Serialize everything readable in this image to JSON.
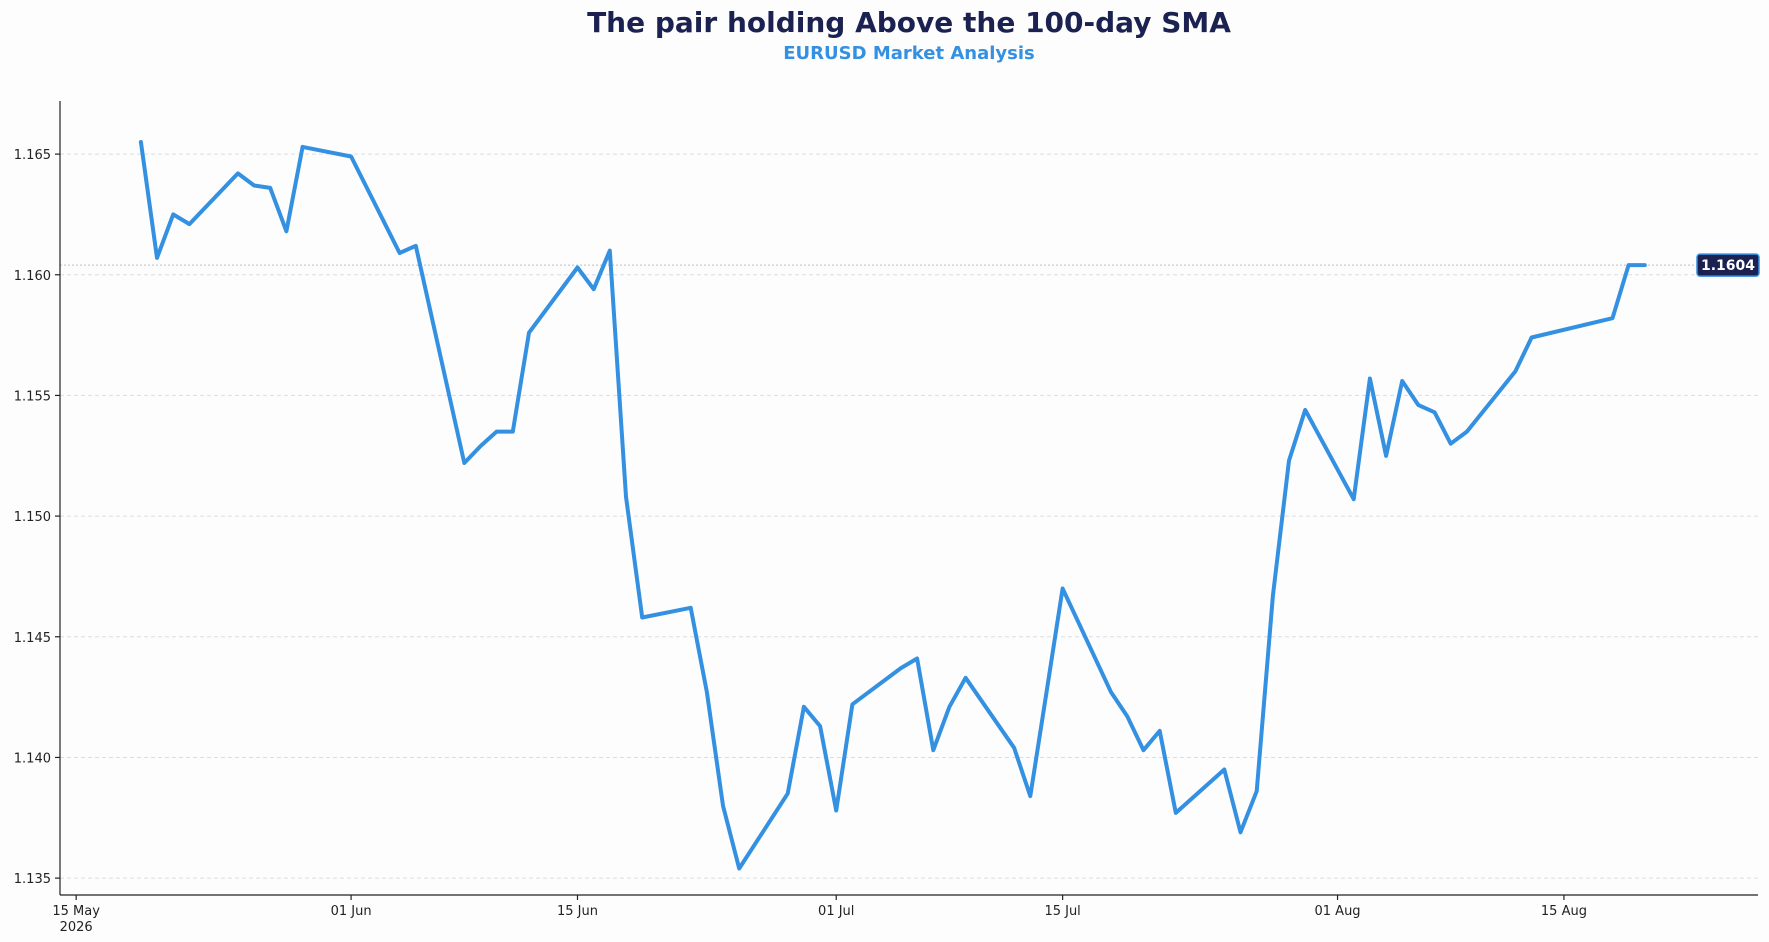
{
  "chart_data": {
    "type": "line",
    "title": "The pair holding Above the 100-day SMA",
    "subtitle": "EURUSD Market Analysis",
    "xlabel": "",
    "ylabel": "",
    "grid": "horizontal dashed",
    "ylim": [
      1.1343,
      1.1672
    ],
    "xlim": [
      "2026-05-14",
      "2026-08-27"
    ],
    "y_ticks": [
      {
        "value": 1.135,
        "label": "1.135"
      },
      {
        "value": 1.14,
        "label": "1.140"
      },
      {
        "value": 1.145,
        "label": "1.145"
      },
      {
        "value": 1.15,
        "label": "1.150"
      },
      {
        "value": 1.155,
        "label": "1.155"
      },
      {
        "value": 1.16,
        "label": "1.160"
      },
      {
        "value": 1.165,
        "label": "1.165"
      }
    ],
    "x_ticks": [
      {
        "date": "2026-05-15",
        "label": "15 May",
        "sublabel": "2026"
      },
      {
        "date": "2026-06-01",
        "label": "01 Jun",
        "sublabel": ""
      },
      {
        "date": "2026-06-15",
        "label": "15 Jun",
        "sublabel": ""
      },
      {
        "date": "2026-07-01",
        "label": "01 Jul",
        "sublabel": ""
      },
      {
        "date": "2026-07-15",
        "label": "15 Jul",
        "sublabel": ""
      },
      {
        "date": "2026-08-01",
        "label": "01 Aug",
        "sublabel": ""
      },
      {
        "date": "2026-08-15",
        "label": "15 Aug",
        "sublabel": ""
      }
    ],
    "last_value_label": "1.1604",
    "last_value": 1.1604,
    "colors": {
      "line": "#3490e0",
      "title": "#1b2150",
      "subtitle": "#3490e0",
      "badge": "#1b2150"
    },
    "series": [
      {
        "x": [
          "2026-05-19",
          "2026-05-20",
          "2026-05-21",
          "2026-05-22",
          "2026-05-25",
          "2026-05-26",
          "2026-05-27",
          "2026-05-28",
          "2026-05-29",
          "2026-06-01",
          "2026-06-04",
          "2026-06-05",
          "2026-06-08",
          "2026-06-09",
          "2026-06-10",
          "2026-06-11",
          "2026-06-12",
          "2026-06-15",
          "2026-06-16",
          "2026-06-17",
          "2026-06-18",
          "2026-06-19",
          "2026-06-22",
          "2026-06-23",
          "2026-06-24",
          "2026-06-25",
          "2026-06-28",
          "2026-06-29",
          "2026-06-30",
          "2026-07-01",
          "2026-07-02",
          "2026-07-05",
          "2026-07-06",
          "2026-07-07",
          "2026-07-08",
          "2026-07-09",
          "2026-07-12",
          "2026-07-13",
          "2026-07-14",
          "2026-07-15",
          "2026-07-18",
          "2026-07-19",
          "2026-07-20",
          "2026-07-21",
          "2026-07-22",
          "2026-07-25",
          "2026-07-26",
          "2026-07-27",
          "2026-07-28",
          "2026-07-29",
          "2026-07-30",
          "2026-08-02",
          "2026-08-03",
          "2026-08-04",
          "2026-08-05",
          "2026-08-06",
          "2026-08-07",
          "2026-08-08",
          "2026-08-09",
          "2026-08-12",
          "2026-08-13",
          "2026-08-18",
          "2026-08-19",
          "2026-08-20"
        ],
        "y": [
          1.1655,
          1.1607,
          1.1625,
          1.1621,
          1.1642,
          1.1637,
          1.1636,
          1.1618,
          1.1653,
          1.1649,
          1.1609,
          1.1612,
          1.1522,
          1.1529,
          1.1535,
          1.1535,
          1.1576,
          1.1603,
          1.1594,
          1.161,
          1.1508,
          1.1458,
          1.1462,
          1.1427,
          1.138,
          1.1354,
          1.1385,
          1.1421,
          1.1413,
          1.1378,
          1.1422,
          1.1437,
          1.1441,
          1.1403,
          1.1421,
          1.1433,
          1.1404,
          1.1384,
          1.1427,
          1.147,
          1.1427,
          1.1417,
          1.1403,
          1.1411,
          1.1377,
          1.1395,
          1.1369,
          1.1386,
          1.1467,
          1.1523,
          1.1544,
          1.1507,
          1.1557,
          1.1525,
          1.1556,
          1.1546,
          1.1543,
          1.153,
          1.1535,
          1.156,
          1.1574,
          1.1582,
          1.1604,
          1.1604
        ]
      }
    ]
  }
}
